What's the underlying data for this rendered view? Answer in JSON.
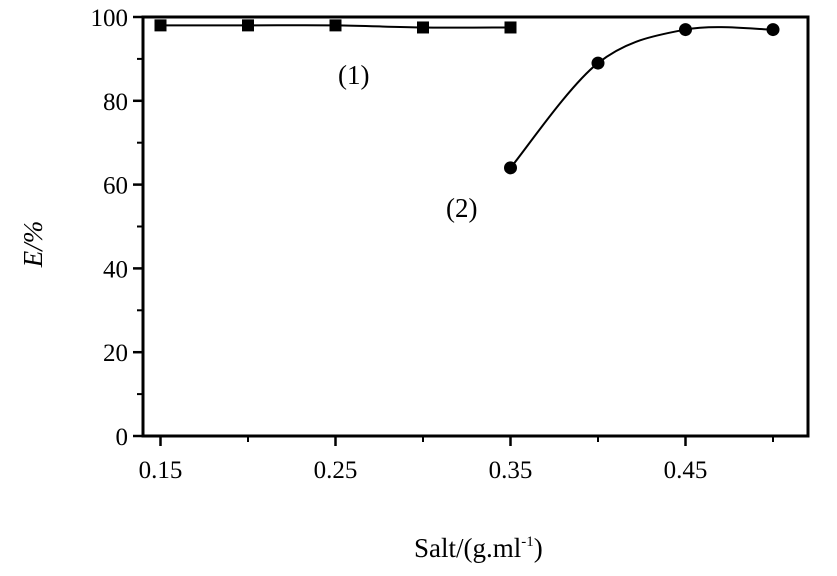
{
  "chart_data": {
    "type": "line",
    "title": "",
    "xlabel": "Salt/(g.ml",
    "xlabel_sup": "-1",
    "xlabel_end": ")",
    "ylabel": "E/%",
    "xlim": [
      0.14,
      0.52
    ],
    "ylim": [
      0,
      100
    ],
    "x_ticks": [
      "0.15",
      "0.25",
      "0.35",
      "0.45"
    ],
    "y_ticks": [
      "0",
      "20",
      "40",
      "60",
      "80",
      "100"
    ],
    "grid": false,
    "series": [
      {
        "name": "(1)",
        "marker": "square",
        "x": [
          0.15,
          0.2,
          0.25,
          0.3,
          0.35
        ],
        "y": [
          98,
          98,
          98,
          97.5,
          97.5
        ]
      },
      {
        "name": "(2)",
        "marker": "circle",
        "x": [
          0.35,
          0.4,
          0.45,
          0.5
        ],
        "y": [
          64,
          89,
          97,
          97
        ]
      }
    ]
  }
}
